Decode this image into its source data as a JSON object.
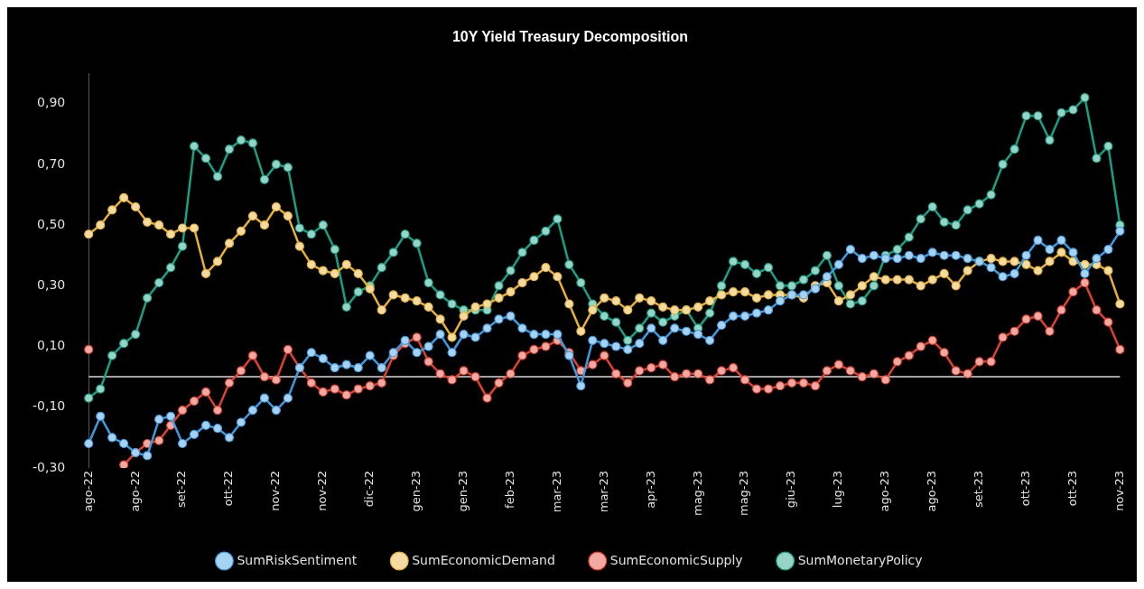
{
  "chart_data": {
    "type": "line",
    "title": "10Y Yield Treasury Decomposition",
    "categories": [
      "ago-22",
      null,
      null,
      null,
      "ago-22",
      null,
      null,
      null,
      "set-22",
      null,
      null,
      null,
      "ott-22",
      null,
      null,
      null,
      "nov-22",
      null,
      null,
      null,
      "nov-22",
      null,
      null,
      null,
      "dic-22",
      null,
      null,
      null,
      "gen-23",
      null,
      null,
      null,
      "gen-23",
      null,
      null,
      null,
      "feb-23",
      null,
      null,
      null,
      "mar-23",
      null,
      null,
      null,
      "mar-23",
      null,
      null,
      null,
      "apr-23",
      null,
      null,
      null,
      "mag-23",
      null,
      null,
      null,
      "mag-23",
      null,
      null,
      null,
      "giu-23",
      null,
      null,
      null,
      "lug-23",
      null,
      null,
      null,
      "ago-23",
      null,
      null,
      null,
      "ago-23",
      null,
      null,
      null,
      "set-23",
      null,
      null,
      null,
      "ott-23",
      null,
      null,
      null,
      "ott-23",
      null,
      null,
      null,
      "nov-23"
    ],
    "series": [
      {
        "name": "SumRiskSentiment",
        "color": "#3d9be0",
        "values": [
          -0.22,
          -0.13,
          -0.2,
          -0.22,
          -0.25,
          -0.26,
          -0.14,
          -0.13,
          -0.22,
          -0.19,
          -0.16,
          -0.17,
          -0.2,
          -0.15,
          -0.11,
          -0.07,
          -0.11,
          -0.07,
          0.03,
          0.08,
          0.06,
          0.03,
          0.04,
          0.03,
          0.07,
          0.03,
          0.08,
          0.12,
          0.08,
          0.1,
          0.14,
          0.08,
          0.14,
          0.13,
          0.16,
          0.19,
          0.2,
          0.16,
          0.14,
          0.14,
          0.14,
          0.07,
          -0.03,
          0.12,
          0.11,
          0.1,
          0.09,
          0.11,
          0.16,
          0.12,
          0.16,
          0.15,
          0.14,
          0.12,
          0.17,
          0.2,
          0.2,
          0.21,
          0.22,
          0.25,
          0.27,
          0.27,
          0.29,
          0.33,
          0.37,
          0.42,
          0.39,
          0.4,
          0.39,
          0.39,
          0.4,
          0.39,
          0.41,
          0.4,
          0.4,
          0.39,
          0.38,
          0.36,
          0.33,
          0.34,
          0.4,
          0.45,
          0.42,
          0.45,
          0.41,
          0.34,
          0.39,
          0.42,
          0.48
        ]
      },
      {
        "name": "SumEconomicDemand",
        "color": "#e6b030",
        "values": [
          0.47,
          0.5,
          0.55,
          0.59,
          0.56,
          0.51,
          0.5,
          0.47,
          0.49,
          0.49,
          0.34,
          0.38,
          0.44,
          0.48,
          0.53,
          0.5,
          0.56,
          0.53,
          0.43,
          0.37,
          0.35,
          0.34,
          0.37,
          0.34,
          0.29,
          0.22,
          0.27,
          0.26,
          0.25,
          0.23,
          0.19,
          0.13,
          0.2,
          0.23,
          0.24,
          0.26,
          0.28,
          0.31,
          0.33,
          0.36,
          0.33,
          0.24,
          0.15,
          0.22,
          0.26,
          0.25,
          0.22,
          0.26,
          0.25,
          0.23,
          0.22,
          0.22,
          0.23,
          0.25,
          0.27,
          0.28,
          0.28,
          0.26,
          0.27,
          0.27,
          0.27,
          0.26,
          0.3,
          0.31,
          0.25,
          0.27,
          0.3,
          0.33,
          0.32,
          0.32,
          0.32,
          0.3,
          0.32,
          0.34,
          0.3,
          0.35,
          0.38,
          0.39,
          0.38,
          0.38,
          0.37,
          0.35,
          0.38,
          0.41,
          0.38,
          0.37,
          0.37,
          0.35,
          0.24
        ]
      },
      {
        "name": "SumEconomicSupply",
        "color": "#e0402f",
        "values": [
          0.09,
          null,
          null,
          -0.29,
          -0.25,
          -0.22,
          -0.21,
          -0.16,
          -0.11,
          -0.08,
          -0.05,
          -0.11,
          -0.02,
          0.02,
          0.07,
          0.0,
          -0.01,
          0.09,
          0.03,
          -0.02,
          -0.05,
          -0.04,
          -0.06,
          -0.04,
          -0.03,
          -0.02,
          0.07,
          0.11,
          0.13,
          0.05,
          0.01,
          -0.01,
          0.02,
          0.0,
          -0.07,
          -0.02,
          0.01,
          0.07,
          0.09,
          0.1,
          0.12,
          0.08,
          0.02,
          0.04,
          0.07,
          0.01,
          -0.02,
          0.02,
          0.03,
          0.04,
          0.0,
          0.01,
          0.01,
          -0.01,
          0.02,
          0.03,
          -0.01,
          -0.04,
          -0.04,
          -0.03,
          -0.02,
          -0.02,
          -0.03,
          0.02,
          0.04,
          0.02,
          0.0,
          0.01,
          -0.01,
          0.05,
          0.07,
          0.1,
          0.12,
          0.08,
          0.02,
          0.01,
          0.05,
          0.05,
          0.13,
          0.15,
          0.19,
          0.2,
          0.15,
          0.22,
          0.28,
          0.31,
          0.22,
          0.18,
          0.09
        ]
      },
      {
        "name": "SumMonetaryPolicy",
        "color": "#16a085",
        "values": [
          -0.07,
          -0.04,
          0.07,
          0.11,
          0.14,
          0.26,
          0.31,
          0.36,
          0.43,
          0.76,
          0.72,
          0.66,
          0.75,
          0.78,
          0.77,
          0.65,
          0.7,
          0.69,
          0.49,
          0.47,
          0.5,
          0.42,
          0.23,
          0.28,
          0.3,
          0.36,
          0.41,
          0.47,
          0.44,
          0.31,
          0.27,
          0.24,
          0.22,
          0.22,
          0.22,
          0.3,
          0.35,
          0.41,
          0.45,
          0.48,
          0.52,
          0.37,
          0.31,
          0.24,
          0.2,
          0.18,
          0.12,
          0.16,
          0.21,
          0.18,
          0.2,
          0.22,
          0.16,
          0.21,
          0.3,
          0.38,
          0.37,
          0.34,
          0.36,
          0.3,
          0.3,
          0.32,
          0.35,
          0.4,
          0.3,
          0.24,
          0.25,
          0.3,
          0.4,
          0.42,
          0.46,
          0.52,
          0.56,
          0.51,
          0.5,
          0.55,
          0.57,
          0.6,
          0.7,
          0.75,
          0.86,
          0.86,
          0.78,
          0.87,
          0.88,
          0.92,
          0.72,
          0.76,
          0.5
        ]
      }
    ],
    "ylim": [
      -0.3,
      1.0
    ],
    "yticks": [
      {
        "value": -0.3,
        "label": "-0,30"
      },
      {
        "value": -0.1,
        "label": "-0,10"
      },
      {
        "value": 0.1,
        "label": "0,10"
      },
      {
        "value": 0.3,
        "label": "0,30"
      },
      {
        "value": 0.5,
        "label": "0,50"
      },
      {
        "value": 0.7,
        "label": "0,70"
      },
      {
        "value": 0.9,
        "label": "0,90"
      }
    ],
    "grid": false,
    "legend": "bottom",
    "marker": "circle",
    "line_style": "solid"
  }
}
